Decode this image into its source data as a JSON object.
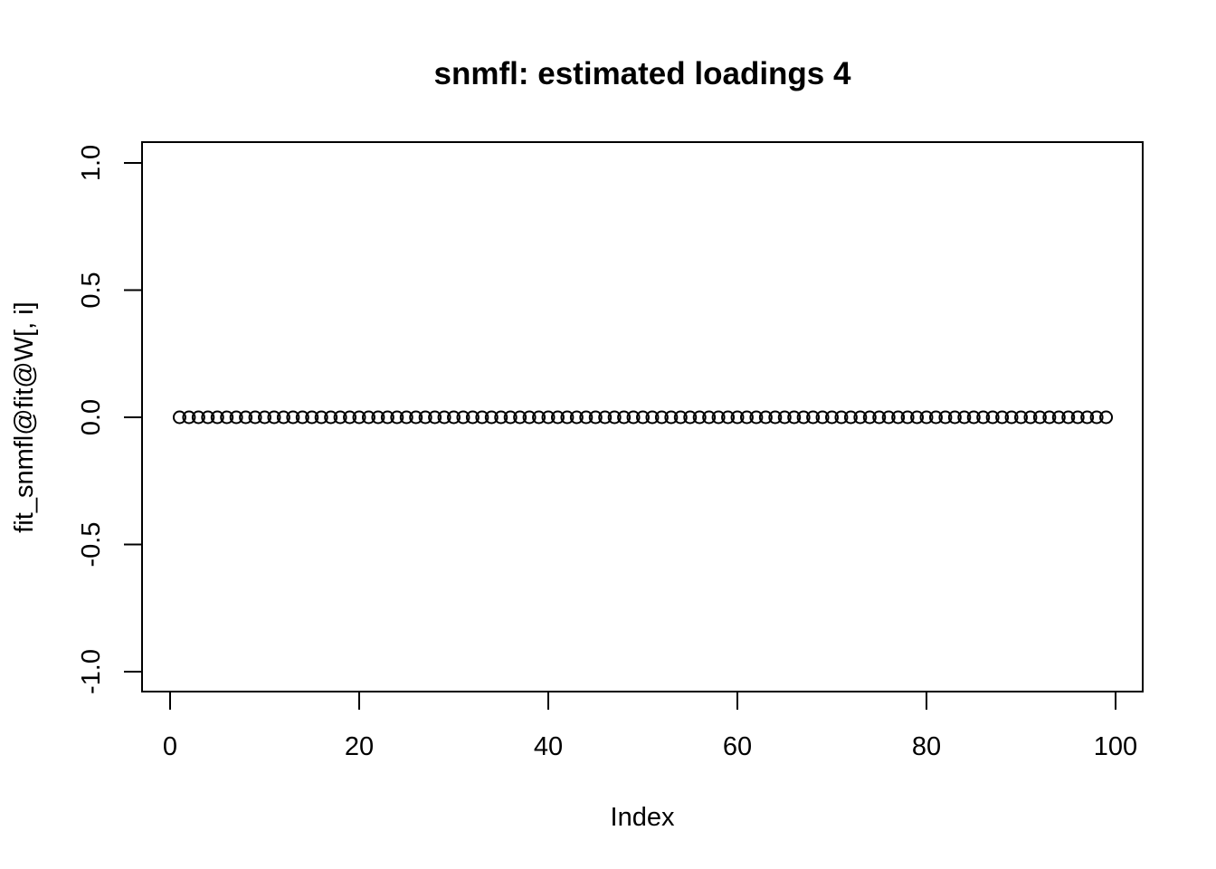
{
  "chart_data": {
    "type": "scatter",
    "title": "snmfl: estimated loadings 4",
    "xlabel": "Index",
    "ylabel": "fit_snmfl@fit@W[, i]",
    "xlim": [
      0,
      100
    ],
    "ylim": [
      -1.0,
      1.0
    ],
    "x_ticks": [
      0,
      20,
      40,
      60,
      80,
      100
    ],
    "x_tick_labels": [
      "0",
      "20",
      "40",
      "60",
      "80",
      "100"
    ],
    "y_ticks": [
      -1.0,
      -0.5,
      0.0,
      0.5,
      1.0
    ],
    "y_tick_labels": [
      "-1.0",
      "-0.5",
      "0.0",
      "0.5",
      "1.0"
    ],
    "grid": false,
    "marker": "open-circle",
    "series": [
      {
        "x": [
          1,
          2,
          3,
          4,
          5,
          6,
          7,
          8,
          9,
          10,
          11,
          12,
          13,
          14,
          15,
          16,
          17,
          18,
          19,
          20,
          21,
          22,
          23,
          24,
          25,
          26,
          27,
          28,
          29,
          30,
          31,
          32,
          33,
          34,
          35,
          36,
          37,
          38,
          39,
          40,
          41,
          42,
          43,
          44,
          45,
          46,
          47,
          48,
          49,
          50,
          51,
          52,
          53,
          54,
          55,
          56,
          57,
          58,
          59,
          60,
          61,
          62,
          63,
          64,
          65,
          66,
          67,
          68,
          69,
          70,
          71,
          72,
          73,
          74,
          75,
          76,
          77,
          78,
          79,
          80,
          81,
          82,
          83,
          84,
          85,
          86,
          87,
          88,
          89,
          90,
          91,
          92,
          93,
          94,
          95,
          96,
          97,
          98,
          99
        ],
        "y": [
          0,
          0,
          0,
          0,
          0,
          0,
          0,
          0,
          0,
          0,
          0,
          0,
          0,
          0,
          0,
          0,
          0,
          0,
          0,
          0,
          0,
          0,
          0,
          0,
          0,
          0,
          0,
          0,
          0,
          0,
          0,
          0,
          0,
          0,
          0,
          0,
          0,
          0,
          0,
          0,
          0,
          0,
          0,
          0,
          0,
          0,
          0,
          0,
          0,
          0,
          0,
          0,
          0,
          0,
          0,
          0,
          0,
          0,
          0,
          0,
          0,
          0,
          0,
          0,
          0,
          0,
          0,
          0,
          0,
          0,
          0,
          0,
          0,
          0,
          0,
          0,
          0,
          0,
          0,
          0,
          0,
          0,
          0,
          0,
          0,
          0,
          0,
          0,
          0,
          0,
          0,
          0,
          0,
          0,
          0,
          0,
          0,
          0,
          0
        ]
      }
    ],
    "colors": {
      "foreground": "#000000",
      "background": "#ffffff"
    }
  }
}
